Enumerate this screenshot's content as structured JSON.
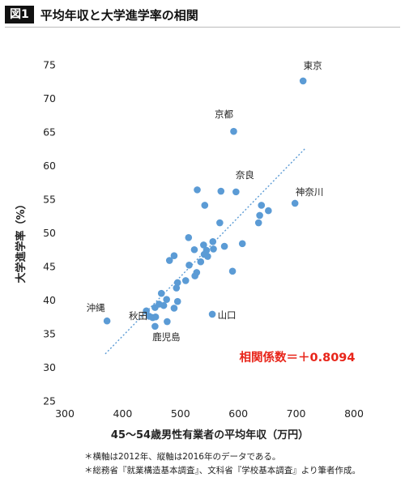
{
  "figure": {
    "badge": "図1",
    "title": "平均年収と大学進学率の相関"
  },
  "chart_data": {
    "type": "scatter",
    "title": "平均年収と大学進学率の相関",
    "xlabel": "45〜54歳男性有業者の平均年収（万円）",
    "ylabel": "大学進学率（%）",
    "xlim": [
      300,
      800
    ],
    "ylim": [
      25,
      75
    ],
    "x_ticks": [
      "300",
      "400",
      "500",
      "600",
      "700",
      "800"
    ],
    "y_ticks": [
      "25",
      "30",
      "35",
      "40",
      "45",
      "50",
      "55",
      "60",
      "65",
      "70",
      "75"
    ],
    "grid": false,
    "point_color": "#5b9bd5",
    "trend_color": "#5b9bd5",
    "trendline": {
      "x": [
        370,
        715
      ],
      "y": [
        32.0,
        62.5
      ]
    },
    "annotation": {
      "text": "相関係数＝＋0.8094",
      "color": "#e8251a"
    },
    "points": [
      {
        "x": 712,
        "y": 72.6,
        "label": "東京"
      },
      {
        "x": 592,
        "y": 65.1,
        "label": "京都"
      },
      {
        "x": 596,
        "y": 56.1,
        "label": "奈良"
      },
      {
        "x": 698,
        "y": 54.4,
        "label": "神奈川"
      },
      {
        "x": 373,
        "y": 36.9,
        "label": "沖縄"
      },
      {
        "x": 452,
        "y": 37.4,
        "label": "秋田"
      },
      {
        "x": 555,
        "y": 37.9,
        "label": "山口"
      },
      {
        "x": 456,
        "y": 36.1,
        "label": "鹿児島"
      },
      {
        "x": 529,
        "y": 56.4,
        "label": ""
      },
      {
        "x": 570,
        "y": 56.2,
        "label": ""
      },
      {
        "x": 542,
        "y": 54.1,
        "label": ""
      },
      {
        "x": 640,
        "y": 54.1,
        "label": ""
      },
      {
        "x": 652,
        "y": 53.3,
        "label": ""
      },
      {
        "x": 637,
        "y": 52.6,
        "label": ""
      },
      {
        "x": 568,
        "y": 51.5,
        "label": ""
      },
      {
        "x": 635,
        "y": 51.5,
        "label": ""
      },
      {
        "x": 514,
        "y": 49.3,
        "label": ""
      },
      {
        "x": 556,
        "y": 48.7,
        "label": ""
      },
      {
        "x": 607,
        "y": 48.4,
        "label": ""
      },
      {
        "x": 540,
        "y": 48.2,
        "label": ""
      },
      {
        "x": 576,
        "y": 48.0,
        "label": ""
      },
      {
        "x": 524,
        "y": 47.5,
        "label": ""
      },
      {
        "x": 545,
        "y": 47.4,
        "label": ""
      },
      {
        "x": 557,
        "y": 47.6,
        "label": ""
      },
      {
        "x": 541,
        "y": 46.8,
        "label": ""
      },
      {
        "x": 547,
        "y": 46.5,
        "label": ""
      },
      {
        "x": 489,
        "y": 46.6,
        "label": ""
      },
      {
        "x": 481,
        "y": 45.9,
        "label": ""
      },
      {
        "x": 535,
        "y": 45.7,
        "label": ""
      },
      {
        "x": 515,
        "y": 45.2,
        "label": ""
      },
      {
        "x": 590,
        "y": 44.3,
        "label": ""
      },
      {
        "x": 528,
        "y": 44.1,
        "label": ""
      },
      {
        "x": 525,
        "y": 43.6,
        "label": ""
      },
      {
        "x": 509,
        "y": 42.9,
        "label": ""
      },
      {
        "x": 495,
        "y": 42.6,
        "label": ""
      },
      {
        "x": 493,
        "y": 41.8,
        "label": ""
      },
      {
        "x": 467,
        "y": 41.0,
        "label": ""
      },
      {
        "x": 476,
        "y": 40.1,
        "label": ""
      },
      {
        "x": 495,
        "y": 39.8,
        "label": ""
      },
      {
        "x": 463,
        "y": 39.4,
        "label": ""
      },
      {
        "x": 471,
        "y": 39.2,
        "label": ""
      },
      {
        "x": 456,
        "y": 38.9,
        "label": ""
      },
      {
        "x": 489,
        "y": 38.8,
        "label": ""
      },
      {
        "x": 441,
        "y": 38.4,
        "label": ""
      },
      {
        "x": 446,
        "y": 37.6,
        "label": ""
      },
      {
        "x": 457,
        "y": 37.5,
        "label": ""
      },
      {
        "x": 477,
        "y": 36.8,
        "label": ""
      }
    ]
  },
  "notes": [
    "＊横軸は2012年、縦軸は2016年のデータである。",
    "＊総務省『就業構造基本調査』、文科省『学校基本調査』より筆者作成。"
  ]
}
